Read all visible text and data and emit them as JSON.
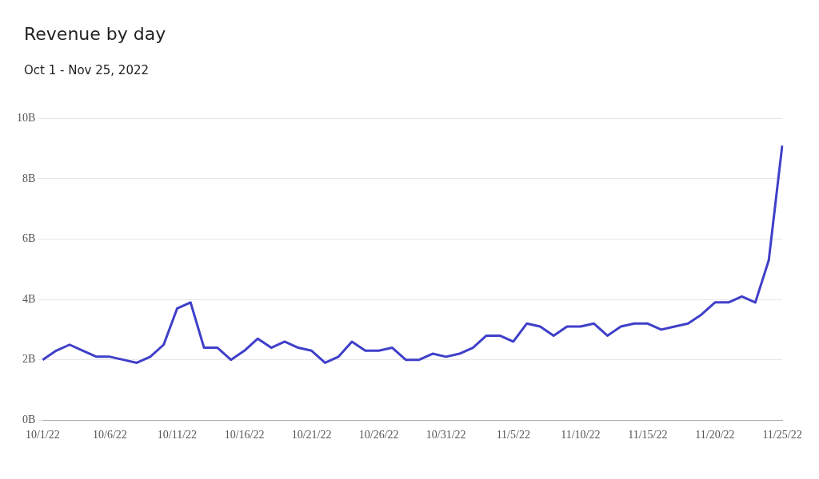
{
  "chart_data": {
    "type": "line",
    "title": "Revenue by day",
    "subtitle": "Oct 1 - Nov 25, 2022",
    "categories": [
      "10/1/22",
      null,
      null,
      null,
      null,
      "10/6/22",
      null,
      null,
      null,
      null,
      "10/11/22",
      null,
      null,
      null,
      null,
      "10/16/22",
      null,
      null,
      null,
      null,
      "10/21/22",
      null,
      null,
      null,
      null,
      "10/26/22",
      null,
      null,
      null,
      null,
      "10/31/22",
      null,
      null,
      null,
      null,
      "11/5/22",
      null,
      null,
      null,
      null,
      "11/10/22",
      null,
      null,
      null,
      null,
      "11/15/22",
      null,
      null,
      null,
      null,
      "11/20/22",
      null,
      null,
      null,
      null,
      "11/25/22"
    ],
    "series": [
      {
        "color": "#3f3fc9",
        "values": [
          2.0,
          2.3,
          2.5,
          2.3,
          2.1,
          2.1,
          2.0,
          1.9,
          2.1,
          2.5,
          3.7,
          3.9,
          2.4,
          2.4,
          2.0,
          2.3,
          2.7,
          2.4,
          2.6,
          2.4,
          2.3,
          1.9,
          2.1,
          2.6,
          2.3,
          2.3,
          2.4,
          2.0,
          2.0,
          2.2,
          2.1,
          2.2,
          2.4,
          2.8,
          2.8,
          2.6,
          3.2,
          3.1,
          2.8,
          3.1,
          3.1,
          3.2,
          2.8,
          3.1,
          3.2,
          3.2,
          3.0,
          3.1,
          3.2,
          3.5,
          3.9,
          3.9,
          4.1,
          3.9,
          5.3,
          9.1
        ]
      }
    ],
    "ylim": [
      0,
      10
    ],
    "yticks": [
      {
        "value": 0,
        "label": "0B"
      },
      {
        "value": 2,
        "label": "2B"
      },
      {
        "value": 4,
        "label": "4B"
      },
      {
        "value": 6,
        "label": "6B"
      },
      {
        "value": 8,
        "label": "8B"
      },
      {
        "value": 10,
        "label": "10B"
      }
    ],
    "grid": "y",
    "legend": false,
    "marker": "none",
    "line_style": "solid"
  }
}
